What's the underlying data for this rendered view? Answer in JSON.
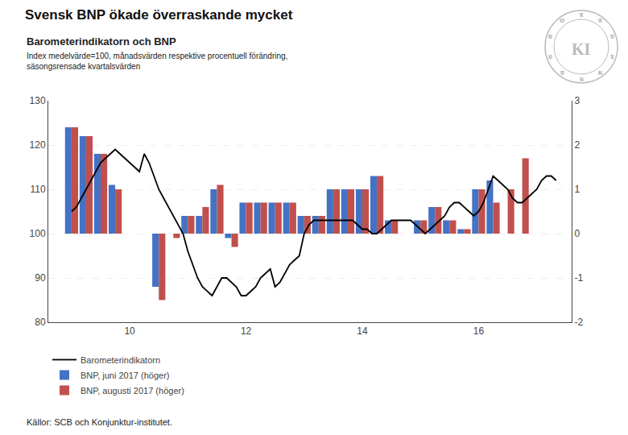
{
  "chart_data": {
    "type": "bar",
    "title": "Svensk BNP ökade överraskande mycket",
    "subtitle": "Barometerindikatorn och BNP",
    "annotations": [
      "Index medelvärde=100, månadsvärden respektive procentuell förändring,",
      "säsongsrensade kvartalsvärden",
      "KI",
      "KONJUNKTURINSTITUTET"
    ],
    "source": "Källor: SCB och Konjunktur-institutet.",
    "xlim": [
      8.6,
      17.6
    ],
    "xticks": [
      10,
      12,
      14,
      16
    ],
    "ylim": [
      80,
      130
    ],
    "yticks": [
      80,
      90,
      100,
      110,
      120,
      130
    ],
    "y2lim": [
      -2,
      3
    ],
    "y2ticks": [
      -2,
      -1,
      0,
      1,
      2,
      3
    ],
    "grid": "y",
    "legend": "lower left",
    "series": [
      {
        "name": "Barometerindikatorn",
        "type": "line",
        "color": "#000000",
        "x": [
          9.0,
          9.083,
          9.167,
          9.25,
          9.333,
          9.417,
          9.5,
          9.583,
          9.667,
          9.75,
          9.833,
          9.917,
          10.0,
          10.083,
          10.167,
          10.25,
          10.333,
          10.417,
          10.5,
          10.583,
          10.667,
          10.75,
          10.833,
          10.917,
          11.0,
          11.083,
          11.167,
          11.25,
          11.333,
          11.417,
          11.5,
          11.583,
          11.667,
          11.75,
          11.833,
          11.917,
          12.0,
          12.083,
          12.167,
          12.25,
          12.333,
          12.417,
          12.5,
          12.583,
          12.667,
          12.75,
          12.833,
          12.917,
          13.0,
          13.083,
          13.167,
          13.25,
          13.333,
          13.417,
          13.5,
          13.583,
          13.667,
          13.75,
          13.833,
          13.917,
          14.0,
          14.083,
          14.167,
          14.25,
          14.333,
          14.417,
          14.5,
          14.583,
          14.667,
          14.75,
          14.833,
          14.917,
          15.0,
          15.083,
          15.167,
          15.25,
          15.333,
          15.417,
          15.5,
          15.583,
          15.667,
          15.75,
          15.833,
          15.917,
          16.0,
          16.083,
          16.167,
          16.25,
          16.333,
          16.417,
          16.5,
          16.583,
          16.667,
          16.75,
          16.833,
          16.917,
          17.0,
          17.083,
          17.167,
          17.25,
          17.333
        ],
        "values": [
          105,
          106,
          108,
          110,
          112,
          114,
          116,
          117,
          118,
          119,
          118,
          117,
          116,
          115,
          114,
          118,
          116,
          113,
          110,
          108,
          106,
          104,
          102,
          100,
          96,
          93,
          90,
          88,
          87,
          86,
          88,
          90,
          90,
          89,
          88,
          86,
          86,
          87,
          88,
          90,
          91,
          92,
          88,
          89,
          91,
          93,
          94,
          95,
          100,
          102,
          103,
          103,
          103,
          103,
          103,
          103,
          103,
          103,
          103,
          102,
          101,
          101,
          100,
          100,
          101,
          102,
          103,
          103,
          103,
          103,
          103,
          102,
          101,
          100,
          101,
          102,
          103,
          104,
          106,
          107,
          107,
          106,
          105,
          104,
          105,
          107,
          110,
          113,
          112,
          111,
          110,
          108,
          107,
          107,
          108,
          109,
          110,
          112,
          113,
          113,
          112
        ]
      },
      {
        "name": "BNP, juni 2017 (höger)",
        "type": "bar",
        "color": "#4472C4",
        "x": [
          9.0,
          9.25,
          9.5,
          9.75,
          10.0,
          10.25,
          10.5,
          10.75,
          11.0,
          11.25,
          11.5,
          11.75,
          12.0,
          12.25,
          12.5,
          12.75,
          13.0,
          13.25,
          13.5,
          13.75,
          14.0,
          14.25,
          14.5,
          14.75,
          15.0,
          15.25,
          15.5,
          15.75,
          16.0,
          16.25,
          16.5,
          16.75,
          17.0,
          17.25
        ],
        "values": [
          124,
          122,
          118,
          111,
          100,
          100,
          88,
          100,
          104,
          104,
          110,
          99,
          107,
          107,
          107,
          107,
          104,
          104,
          110,
          110,
          110,
          113,
          103,
          100,
          103,
          106,
          103,
          101,
          110,
          112,
          null,
          null,
          null,
          null
        ]
      },
      {
        "name": "BNP, augusti 2017 (höger)",
        "type": "bar",
        "color": "#C0504D",
        "x": [
          9.0,
          9.25,
          9.5,
          9.75,
          10.0,
          10.25,
          10.5,
          10.75,
          11.0,
          11.25,
          11.5,
          11.75,
          12.0,
          12.25,
          12.5,
          12.75,
          13.0,
          13.25,
          13.5,
          13.75,
          14.0,
          14.25,
          14.5,
          14.75,
          15.0,
          15.25,
          15.5,
          15.75,
          16.0,
          16.25,
          16.5,
          16.75,
          17.0,
          17.25
        ],
        "values": [
          124,
          122,
          118,
          110,
          100,
          100,
          85,
          99,
          104,
          106,
          111,
          97,
          107,
          107,
          107,
          107,
          104,
          104,
          110,
          110,
          110,
          113,
          103,
          100,
          103,
          106,
          103,
          101,
          110,
          107,
          110,
          117,
          null,
          null
        ]
      }
    ]
  }
}
